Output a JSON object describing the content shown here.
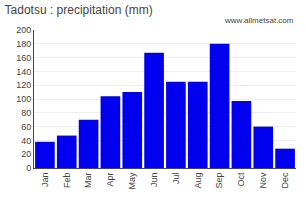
{
  "chart_data": {
    "type": "bar",
    "title": "Tadotsu : precipitation (mm)",
    "categories": [
      "Jan",
      "Feb",
      "Mar",
      "Apr",
      "May",
      "Jun",
      "Jul",
      "Aug",
      "Sep",
      "Oct",
      "Nov",
      "Dec"
    ],
    "values": [
      38,
      47,
      70,
      104,
      110,
      167,
      125,
      125,
      180,
      97,
      60,
      28
    ],
    "color": "#0000EE",
    "ylim": [
      0,
      200
    ],
    "yticks": [
      0,
      20,
      40,
      60,
      80,
      100,
      120,
      140,
      160,
      180,
      200
    ],
    "grid": true,
    "annotations": [
      "www.allmetsat.com"
    ]
  }
}
